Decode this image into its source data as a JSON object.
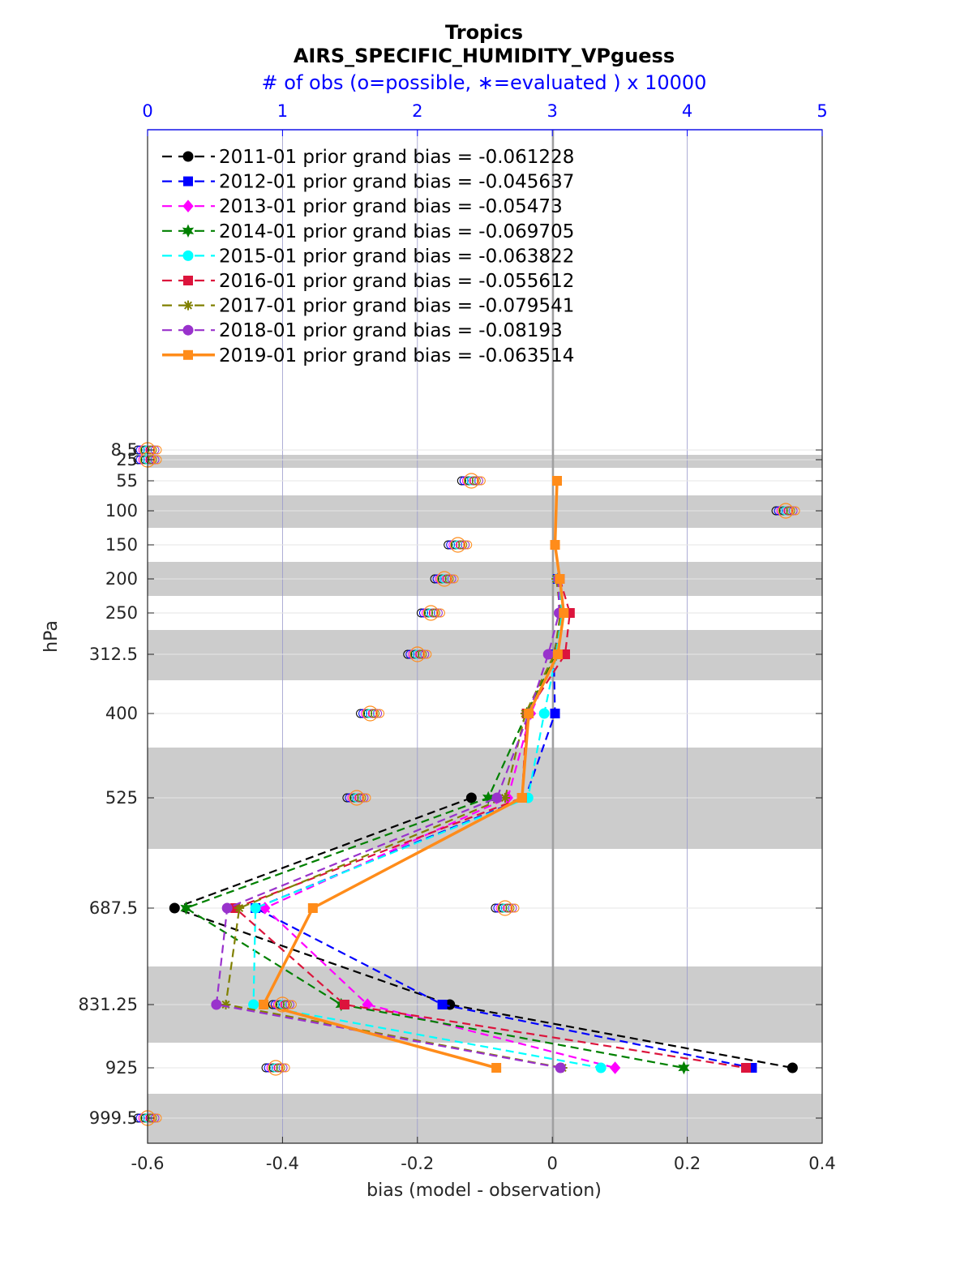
{
  "chart_data": {
    "type": "line",
    "title": "Tropics",
    "subtitle": "AIRS_SPECIFIC_HUMIDITY_VPguess",
    "top_axis_label": "# of obs (o=possible, ∗=evaluated ) x 10000",
    "xlabel": "bias (model - observation)",
    "ylabel": "hPa",
    "xlim": [
      -0.6,
      0.4
    ],
    "top_xlim": [
      0,
      5
    ],
    "x_ticks": [
      "-0.6",
      "-0.4",
      "-0.2",
      "0",
      "0.2",
      "0.4"
    ],
    "top_ticks": [
      "0",
      "1",
      "2",
      "3",
      "4",
      "5"
    ],
    "y_levels": [
      8.5,
      25,
      55,
      100,
      150,
      200,
      250,
      312.5,
      400,
      525,
      687.5,
      831.25,
      925,
      999.5
    ],
    "y_tick_labels": [
      "8.5",
      "25",
      "55",
      "100",
      "150",
      "200",
      "250",
      "312.5",
      "400",
      "525",
      "687.5",
      "831.25",
      "925",
      "999.5"
    ],
    "legend_position": "top-left",
    "grid": true,
    "series": [
      {
        "name": "2011-01 prior grand bias = -0.061228",
        "color": "#000000",
        "marker": "circle",
        "style": "dashed",
        "bias": [
          null,
          null,
          null,
          null,
          null,
          null,
          null,
          null,
          null,
          -0.12,
          -0.56,
          -0.152,
          0.356,
          null
        ]
      },
      {
        "name": "2012-01 prior grand bias = -0.045637",
        "color": "#0000ff",
        "marker": "square",
        "style": "dashed",
        "bias": [
          null,
          null,
          null,
          null,
          null,
          0.008,
          0.015,
          0.002,
          0.004,
          -0.04,
          -0.44,
          -0.163,
          0.296,
          null
        ]
      },
      {
        "name": "2013-01 prior grand bias = -0.05473",
        "color": "#ff00ff",
        "marker": "diamond",
        "style": "dashed",
        "bias": [
          null,
          null,
          null,
          null,
          null,
          0.008,
          0.016,
          0.006,
          -0.032,
          -0.066,
          -0.426,
          -0.274,
          0.093,
          null
        ]
      },
      {
        "name": "2014-01 prior grand bias = -0.069705",
        "color": "#008000",
        "marker": "hexagram",
        "style": "dashed",
        "bias": [
          null,
          null,
          null,
          null,
          null,
          0.008,
          0.016,
          0.006,
          -0.038,
          -0.095,
          -0.543,
          -0.313,
          0.195,
          null
        ]
      },
      {
        "name": "2015-01 prior grand bias = -0.063822",
        "color": "#00ffff",
        "marker": "circle",
        "style": "dashed",
        "bias": [
          null,
          null,
          null,
          null,
          null,
          0.008,
          0.014,
          0.006,
          -0.012,
          -0.036,
          -0.44,
          -0.443,
          0.072,
          null
        ]
      },
      {
        "name": "2016-01 prior grand bias = -0.055612",
        "color": "#dc143c",
        "marker": "square",
        "style": "dashed",
        "bias": [
          null,
          null,
          null,
          null,
          null,
          0.011,
          0.026,
          0.019,
          -0.038,
          -0.045,
          -0.47,
          -0.308,
          0.287,
          null
        ]
      },
      {
        "name": "2017-01 prior grand bias = -0.079541",
        "color": "#808000",
        "marker": "asterisk",
        "style": "dashed",
        "bias": [
          null,
          null,
          null,
          null,
          null,
          0.006,
          0.012,
          0.003,
          -0.04,
          -0.07,
          -0.464,
          -0.484,
          0.015,
          null
        ]
      },
      {
        "name": "2018-01 prior grand bias = -0.08193",
        "color": "#9932cc",
        "marker": "circle",
        "style": "dashed",
        "bias": [
          null,
          null,
          null,
          null,
          null,
          0.009,
          0.01,
          -0.006,
          -0.035,
          -0.082,
          -0.482,
          -0.498,
          0.012,
          null
        ]
      },
      {
        "name": "2019-01 prior grand bias = -0.063514",
        "color": "#ff8c1a",
        "marker": "square",
        "style": "solid",
        "bias": [
          null,
          null,
          0.007,
          null,
          0.004,
          0.011,
          0.017,
          0.008,
          -0.035,
          -0.045,
          -0.355,
          -0.428,
          -0.083,
          null
        ]
      }
    ],
    "obs_counts_possible": [
      0,
      0,
      2.4,
      4.73,
      2.3,
      2.2,
      2.1,
      2.0,
      1.65,
      1.55,
      2.65,
      1.0,
      0.95,
      0
    ]
  }
}
